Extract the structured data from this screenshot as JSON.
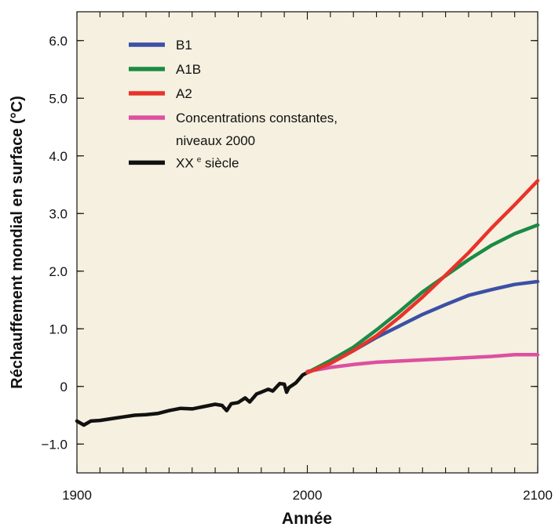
{
  "chart_data": {
    "type": "line",
    "xlabel": "Année",
    "ylabel": "Réchauffement mondial en surface (°C)",
    "xlim": [
      1900,
      2100
    ],
    "ylim": [
      -1.5,
      6.5
    ],
    "x_ticks": [
      1900,
      2000,
      2100
    ],
    "y_ticks": [
      {
        "value": 6.0,
        "label": "6.0"
      },
      {
        "value": 5.0,
        "label": "5.0"
      },
      {
        "value": 4.0,
        "label": "4.0"
      },
      {
        "value": 3.0,
        "label": "3.0"
      },
      {
        "value": 2.0,
        "label": "2.0"
      },
      {
        "value": 1.0,
        "label": "1.0"
      },
      {
        "value": 0,
        "label": "0"
      },
      {
        "value": -1.0,
        "label": "−1.0"
      }
    ],
    "grid": false,
    "background_color": "#f5f0df",
    "legend_position": "top-left",
    "legend": [
      {
        "series": "B1",
        "lines": [
          "B1"
        ],
        "sup": ""
      },
      {
        "series": "A1B",
        "lines": [
          "A1B"
        ],
        "sup": ""
      },
      {
        "series": "A2",
        "lines": [
          "A2"
        ],
        "sup": ""
      },
      {
        "series": "constant",
        "lines": [
          "Concentrations constantes,",
          "niveaux 2000"
        ],
        "sup": ""
      },
      {
        "series": "20th",
        "lines": [
          "XX"
        ],
        "sup": "e",
        "suffix": " siècle"
      }
    ],
    "series": [
      {
        "id": "20th",
        "color": "#111111",
        "x": [
          1900,
          1903,
          1906,
          1910,
          1915,
          1920,
          1925,
          1930,
          1935,
          1940,
          1945,
          1950,
          1955,
          1960,
          1963,
          1965,
          1967,
          1970,
          1973,
          1975,
          1978,
          1980,
          1983,
          1985,
          1988,
          1990,
          1991,
          1992,
          1995,
          1998,
          2000
        ],
        "y": [
          -0.6,
          -0.67,
          -0.6,
          -0.59,
          -0.56,
          -0.53,
          -0.5,
          -0.49,
          -0.47,
          -0.42,
          -0.38,
          -0.39,
          -0.35,
          -0.31,
          -0.33,
          -0.42,
          -0.3,
          -0.28,
          -0.2,
          -0.27,
          -0.13,
          -0.1,
          -0.05,
          -0.08,
          0.05,
          0.04,
          -0.1,
          -0.02,
          0.06,
          0.2,
          0.24
        ]
      },
      {
        "id": "B1",
        "color": "#3b50a5",
        "x": [
          2000,
          2010,
          2020,
          2030,
          2040,
          2050,
          2060,
          2070,
          2080,
          2090,
          2100
        ],
        "y": [
          0.24,
          0.4,
          0.62,
          0.85,
          1.05,
          1.25,
          1.42,
          1.58,
          1.68,
          1.77,
          1.82
        ]
      },
      {
        "id": "A1B",
        "color": "#1b8a45",
        "x": [
          2000,
          2010,
          2020,
          2030,
          2040,
          2050,
          2060,
          2070,
          2080,
          2090,
          2100
        ],
        "y": [
          0.24,
          0.45,
          0.68,
          0.98,
          1.3,
          1.64,
          1.92,
          2.2,
          2.45,
          2.65,
          2.8
        ]
      },
      {
        "id": "A2",
        "color": "#e8332a",
        "x": [
          2000,
          2010,
          2020,
          2030,
          2040,
          2050,
          2060,
          2070,
          2080,
          2090,
          2100
        ],
        "y": [
          0.24,
          0.4,
          0.62,
          0.88,
          1.2,
          1.55,
          1.93,
          2.32,
          2.75,
          3.15,
          3.57
        ]
      },
      {
        "id": "constant",
        "color": "#de4fa1",
        "x": [
          2000,
          2010,
          2020,
          2030,
          2040,
          2050,
          2060,
          2070,
          2080,
          2090,
          2100
        ],
        "y": [
          0.26,
          0.33,
          0.38,
          0.42,
          0.44,
          0.46,
          0.48,
          0.5,
          0.52,
          0.55,
          0.55
        ]
      }
    ]
  }
}
